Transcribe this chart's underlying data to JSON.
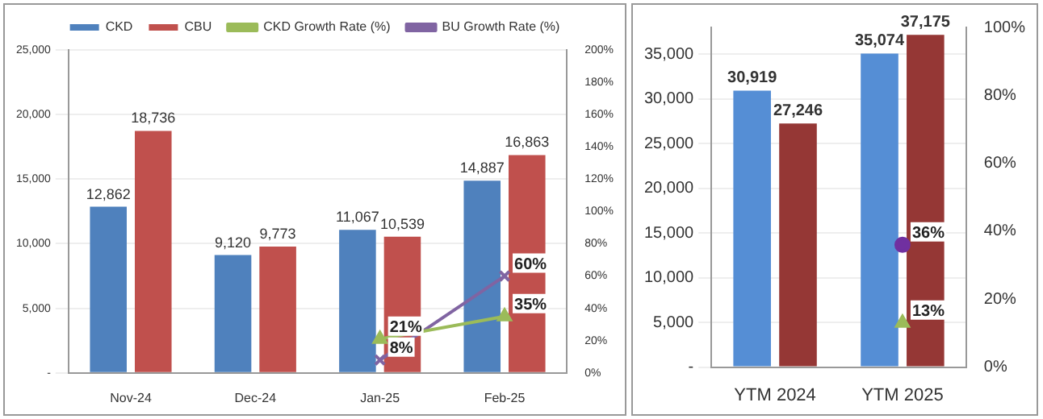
{
  "chart_data": [
    {
      "type": "bar",
      "categories": [
        "Nov-24",
        "Dec-24",
        "Jan-25",
        "Feb-25"
      ],
      "legend": "top",
      "grid": "y",
      "ylim": [
        0,
        25000
      ],
      "yticks": [
        {
          "value": 0,
          "label": "-"
        },
        {
          "value": 5000,
          "label": "5,000"
        },
        {
          "value": 10000,
          "label": "10,000"
        },
        {
          "value": 15000,
          "label": "15,000"
        },
        {
          "value": 20000,
          "label": "20,000"
        },
        {
          "value": 25000,
          "label": "25,000"
        }
      ],
      "y2lim": [
        0,
        200
      ],
      "y2ticks": [
        {
          "value": 0,
          "label": "0%"
        },
        {
          "value": 20,
          "label": "20%"
        },
        {
          "value": 40,
          "label": "40%"
        },
        {
          "value": 60,
          "label": "60%"
        },
        {
          "value": 80,
          "label": "80%"
        },
        {
          "value": 100,
          "label": "100%"
        },
        {
          "value": 120,
          "label": "120%"
        },
        {
          "value": 140,
          "label": "140%"
        },
        {
          "value": 160,
          "label": "160%"
        },
        {
          "value": 180,
          "label": "180%"
        },
        {
          "value": 200,
          "label": "200%"
        }
      ],
      "series": [
        {
          "name": "CKD",
          "color": "#4f81bd",
          "values": [
            12862,
            9120,
            11067,
            14887
          ],
          "value_labels": [
            "12,862",
            "9,120",
            "11,067",
            "14,887"
          ]
        },
        {
          "name": "CBU",
          "color": "#c0504d",
          "values": [
            18736,
            9773,
            10539,
            16863
          ],
          "value_labels": [
            "18,736",
            "9,773",
            "10,539",
            "16,863"
          ]
        },
        {
          "name": "CKD Growth Rate (%)",
          "type": "line",
          "axis": "y2",
          "marker": "triangle",
          "color": "#9bbb59",
          "values": [
            null,
            null,
            21,
            35
          ],
          "value_labels": [
            null,
            null,
            "21%",
            "35%"
          ]
        },
        {
          "name": "BU Growth Rate (%)",
          "type": "line",
          "axis": "y2",
          "marker": "cross",
          "color": "#8064a2",
          "values": [
            null,
            null,
            8,
            60
          ],
          "value_labels": [
            null,
            null,
            "8%",
            "60%"
          ]
        }
      ]
    },
    {
      "type": "bar",
      "categories": [
        "YTM 2024",
        "YTM 2025"
      ],
      "grid": "y",
      "ylim": [
        0,
        38000
      ],
      "yticks": [
        {
          "value": 0,
          "label": "-"
        },
        {
          "value": 5000,
          "label": "5,000"
        },
        {
          "value": 10000,
          "label": "10,000"
        },
        {
          "value": 15000,
          "label": "15,000"
        },
        {
          "value": 20000,
          "label": "20,000"
        },
        {
          "value": 25000,
          "label": "25,000"
        },
        {
          "value": 30000,
          "label": "30,000"
        },
        {
          "value": 35000,
          "label": "35,000"
        }
      ],
      "y2lim": [
        0,
        100
      ],
      "y2ticks": [
        {
          "value": 0,
          "label": "0%"
        },
        {
          "value": 20,
          "label": "20%"
        },
        {
          "value": 40,
          "label": "40%"
        },
        {
          "value": 60,
          "label": "60%"
        },
        {
          "value": 80,
          "label": "80%"
        },
        {
          "value": 100,
          "label": "100%"
        }
      ],
      "series": [
        {
          "color": "#558ed5",
          "values": [
            30919,
            35074
          ],
          "value_labels": [
            "30,919",
            "35,074"
          ]
        },
        {
          "color": "#953735",
          "values": [
            27246,
            37175
          ],
          "value_labels": [
            "27,246",
            "37,175"
          ]
        },
        {
          "type": "line",
          "axis": "y2",
          "marker": "triangle",
          "color": "#9bbb59",
          "values": [
            null,
            13
          ],
          "value_labels": [
            null,
            "13%"
          ]
        },
        {
          "type": "line",
          "axis": "y2",
          "marker": "circle",
          "color": "#7030a0",
          "values": [
            null,
            36
          ],
          "value_labels": [
            null,
            "36%"
          ]
        }
      ]
    }
  ]
}
